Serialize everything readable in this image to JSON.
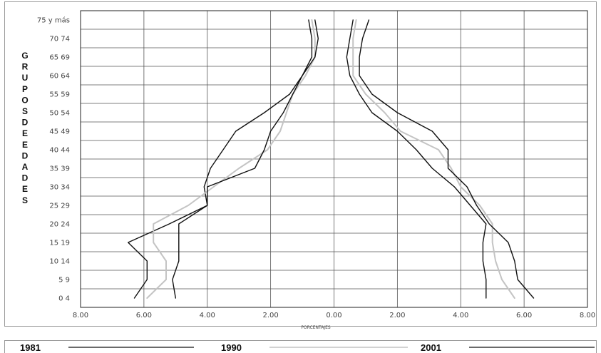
{
  "chart_data": {
    "type": "line",
    "ylabel": "GRUPOS DE EDADES",
    "xlabel": "PORCENTAJES",
    "xlim": [
      -8,
      8
    ],
    "x_tick_labels": [
      "8.00",
      "6.00",
      "4.00",
      "2.00",
      "0.00",
      "2.00",
      "4.00",
      "6.00",
      "8.00"
    ],
    "categories": [
      "0 4",
      "5 9",
      "10 14",
      "15 19",
      "20 24",
      "25 29",
      "30 34",
      "35 39",
      "40 44",
      "45 49",
      "50 54",
      "55 59",
      "60 64",
      "65 69",
      "70 74",
      "75 y más"
    ],
    "series": [
      {
        "name": "1981",
        "color": "#111111",
        "left": [
          6.3,
          5.9,
          5.9,
          6.5,
          5.2,
          4.0,
          4.1,
          3.9,
          3.5,
          3.1,
          2.2,
          1.4,
          1.0,
          0.7,
          0.7,
          0.8
        ],
        "right": [
          4.8,
          4.8,
          4.7,
          4.7,
          4.8,
          4.3,
          3.8,
          3.1,
          2.6,
          2.0,
          1.2,
          0.8,
          0.5,
          0.4,
          0.5,
          0.6
        ]
      },
      {
        "name": "1990",
        "color": "#c4c4c4",
        "left": [
          5.9,
          5.3,
          5.3,
          5.7,
          5.7,
          4.6,
          3.8,
          3.0,
          2.1,
          1.7,
          1.5,
          1.3,
          0.9,
          0.6,
          0.6,
          0.7
        ],
        "right": [
          5.7,
          5.3,
          5.1,
          5.0,
          5.0,
          4.6,
          4.0,
          3.7,
          3.3,
          2.1,
          1.6,
          1.0,
          0.6,
          0.6,
          0.6,
          0.7
        ]
      },
      {
        "name": "2001",
        "color": "#111111",
        "left": [
          5.0,
          5.1,
          4.9,
          4.9,
          4.9,
          4.0,
          4.0,
          2.5,
          2.2,
          2.0,
          1.6,
          1.3,
          1.0,
          0.6,
          0.5,
          0.6
        ],
        "right": [
          6.3,
          5.8,
          5.7,
          5.5,
          4.9,
          4.5,
          4.2,
          3.6,
          3.6,
          3.1,
          2.0,
          1.2,
          0.8,
          0.8,
          0.9,
          1.1
        ]
      }
    ],
    "grid": true,
    "legend": "bottom"
  },
  "colors": {
    "black": "#111111",
    "gray": "#c4c4c4",
    "grid": "#555555"
  }
}
